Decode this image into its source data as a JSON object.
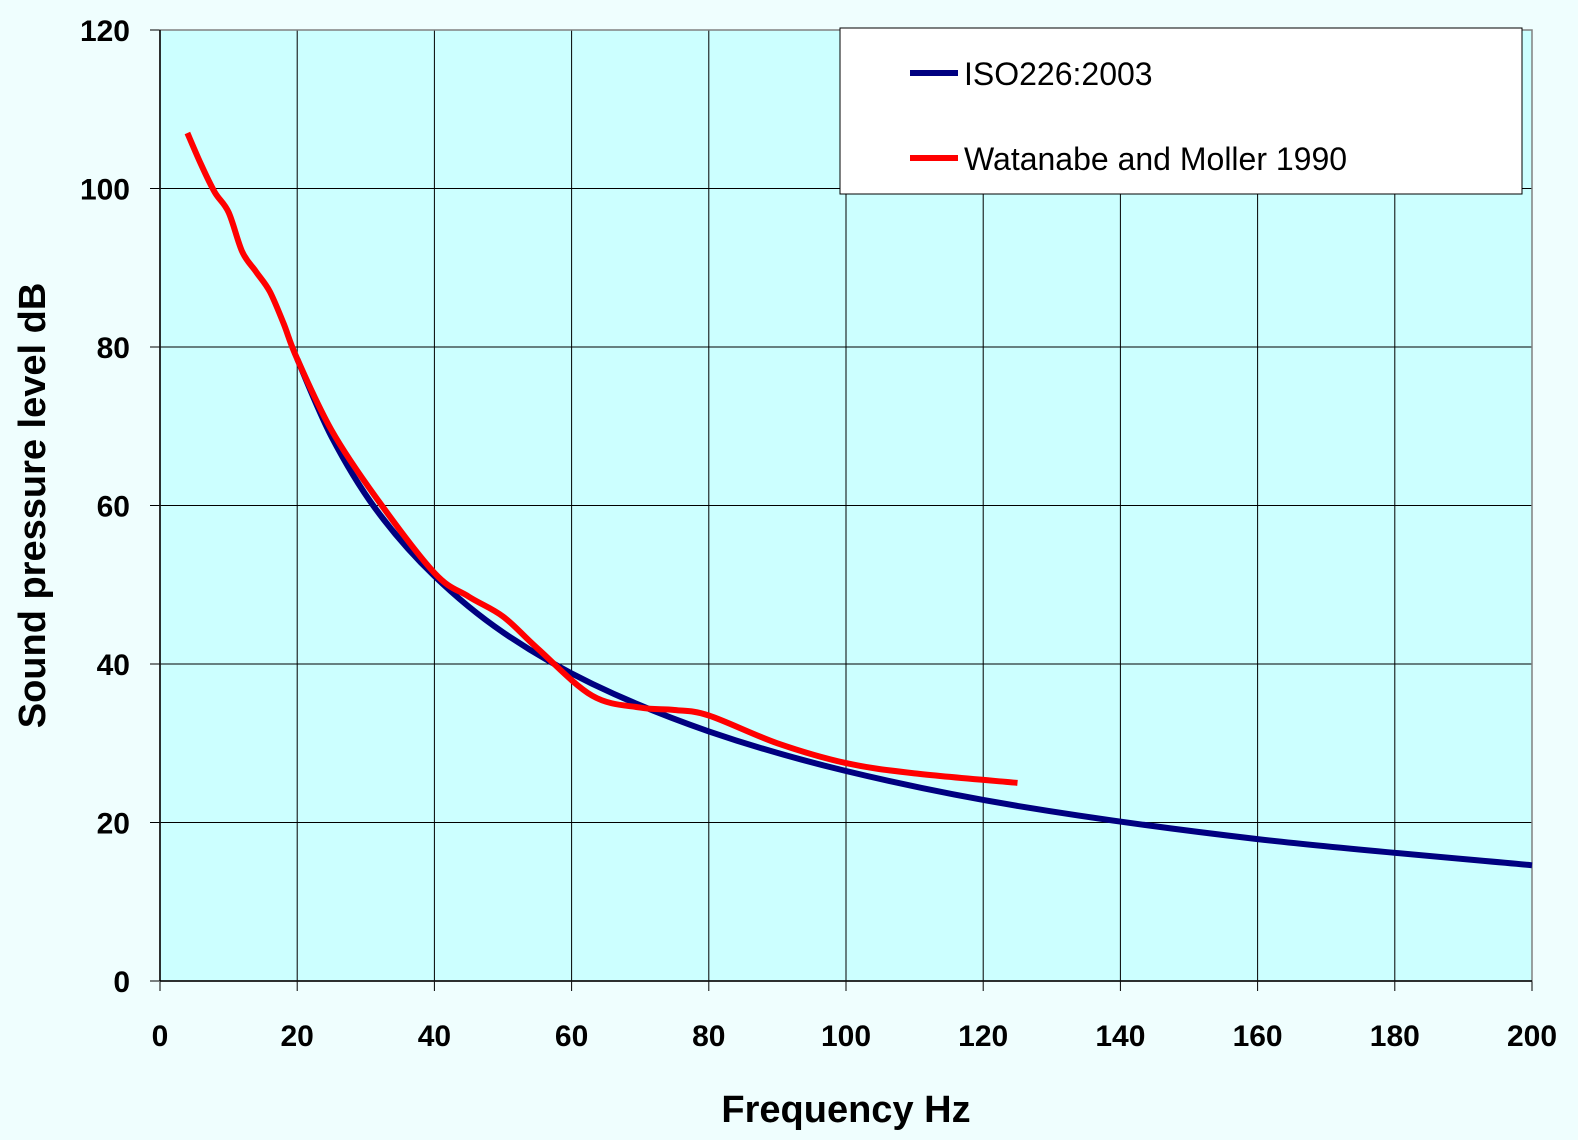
{
  "chart_data": {
    "type": "line",
    "title": "",
    "xlabel": "Frequency Hz",
    "ylabel": "Sound pressure level dB",
    "xlim": [
      0,
      200
    ],
    "ylim": [
      0,
      120
    ],
    "x_ticks": [
      "0",
      "20",
      "40",
      "60",
      "80",
      "100",
      "120",
      "140",
      "160",
      "180",
      "200"
    ],
    "y_ticks": [
      "0",
      "20",
      "40",
      "60",
      "80",
      "100",
      "120"
    ],
    "grid": true,
    "legend_position": "top-right",
    "plot_background": "#ccffff",
    "series": [
      {
        "name": "ISO226:2003",
        "color": "#000080",
        "x": [
          20,
          25,
          31.5,
          40,
          50,
          63,
          80,
          100,
          125,
          160,
          200
        ],
        "y": [
          78.5,
          68.7,
          59.5,
          51.1,
          44.0,
          37.5,
          31.5,
          26.5,
          22.1,
          17.9,
          14.6
        ]
      },
      {
        "name": "Watanabe and Moller 1990",
        "color": "#ff0000",
        "x": [
          4,
          6,
          8,
          10,
          12,
          14,
          16,
          18,
          20,
          25,
          31.5,
          40,
          45,
          50,
          55,
          63,
          70,
          75,
          80,
          90,
          100,
          110,
          125
        ],
        "y": [
          107,
          103,
          99.5,
          97,
          92,
          89.5,
          87,
          83,
          78.5,
          69.5,
          61,
          51.5,
          48.5,
          46,
          42,
          36,
          34.5,
          34.2,
          33.5,
          30,
          27.5,
          26.2,
          25
        ]
      }
    ]
  }
}
